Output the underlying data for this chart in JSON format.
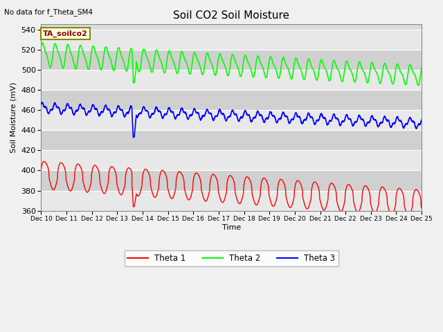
{
  "title": "Soil CO2 Soil Moisture",
  "xlabel": "Time",
  "ylabel": "Soil Moisture (mV)",
  "ylim": [
    360,
    545
  ],
  "xlim": [
    0,
    15
  ],
  "no_data_text": "No data for f_Theta_SM4",
  "annotation_text": "TA_soilco2",
  "x_tick_labels": [
    "Dec 10",
    "Dec 11",
    "Dec 12",
    "Dec 13",
    "Dec 14",
    "Dec 15",
    "Dec 16",
    "Dec 17",
    "Dec 18",
    "Dec 19",
    "Dec 20",
    "Dec 21",
    "Dec 22",
    "Dec 23",
    "Dec 24",
    "Dec 25"
  ],
  "legend_labels": [
    "Theta 1",
    "Theta 2",
    "Theta 3"
  ],
  "line_colors": [
    "red",
    "lime",
    "blue"
  ],
  "bg_band_colors": [
    "#e8e8e8",
    "#d8d8d8"
  ],
  "yticks": [
    360,
    380,
    400,
    420,
    440,
    460,
    480,
    500,
    520,
    540
  ]
}
